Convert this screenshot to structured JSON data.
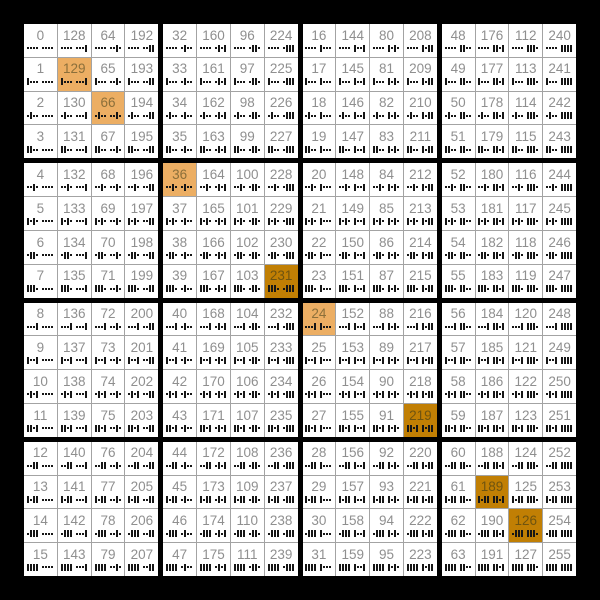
{
  "page": {
    "background": "#000000"
  },
  "chart_data": {
    "type": "table",
    "title": "",
    "description": "16x16 grid of byte values 0-255; cell(row r, col c) = r + bit-reverse(c). Each cell shows the decimal value and its 8-bit binary pattern drawn LSB-first (dot = 0, bar = 1, small gap between nibbles). Binary-palindrome values with two set bits are highlighted light orange, with six set bits dark orange.",
    "rows": 16,
    "cols": 16,
    "values": [
      [
        0,
        128,
        64,
        192,
        32,
        160,
        96,
        224,
        16,
        144,
        80,
        208,
        48,
        176,
        112,
        240
      ],
      [
        1,
        129,
        65,
        193,
        33,
        161,
        97,
        225,
        17,
        145,
        81,
        209,
        49,
        177,
        113,
        241
      ],
      [
        2,
        130,
        66,
        194,
        34,
        162,
        98,
        226,
        18,
        146,
        82,
        210,
        50,
        178,
        114,
        242
      ],
      [
        3,
        131,
        67,
        195,
        35,
        163,
        99,
        227,
        19,
        147,
        83,
        211,
        51,
        179,
        115,
        243
      ],
      [
        4,
        132,
        68,
        196,
        36,
        164,
        100,
        228,
        20,
        148,
        84,
        212,
        52,
        180,
        116,
        244
      ],
      [
        5,
        133,
        69,
        197,
        37,
        165,
        101,
        229,
        21,
        149,
        85,
        213,
        53,
        181,
        117,
        245
      ],
      [
        6,
        134,
        70,
        198,
        38,
        166,
        102,
        230,
        22,
        150,
        86,
        214,
        54,
        182,
        118,
        246
      ],
      [
        7,
        135,
        71,
        199,
        39,
        167,
        103,
        231,
        23,
        151,
        87,
        215,
        55,
        183,
        119,
        247
      ],
      [
        8,
        136,
        72,
        200,
        40,
        168,
        104,
        232,
        24,
        152,
        88,
        216,
        56,
        184,
        120,
        248
      ],
      [
        9,
        137,
        73,
        201,
        41,
        169,
        105,
        233,
        25,
        153,
        89,
        217,
        57,
        185,
        121,
        249
      ],
      [
        10,
        138,
        74,
        202,
        42,
        170,
        106,
        234,
        26,
        154,
        90,
        218,
        58,
        186,
        122,
        250
      ],
      [
        11,
        139,
        75,
        203,
        43,
        171,
        107,
        235,
        27,
        155,
        91,
        219,
        59,
        187,
        123,
        251
      ],
      [
        12,
        140,
        76,
        204,
        44,
        172,
        108,
        236,
        28,
        156,
        92,
        220,
        60,
        188,
        124,
        252
      ],
      [
        13,
        141,
        77,
        205,
        45,
        173,
        109,
        237,
        29,
        157,
        93,
        221,
        61,
        189,
        125,
        253
      ],
      [
        14,
        142,
        78,
        206,
        46,
        174,
        110,
        238,
        30,
        158,
        94,
        222,
        62,
        190,
        126,
        254
      ],
      [
        15,
        143,
        79,
        207,
        47,
        175,
        111,
        239,
        31,
        159,
        95,
        223,
        63,
        191,
        127,
        255
      ]
    ],
    "binary_glyph_legend": {
      "zero_glyph": "small-dot",
      "one_glyph": "vertical-bar",
      "bit_order": "LSB-first",
      "nibble_gap_after_bits": 4
    }
  },
  "grid_style": {
    "cell_bg": "#ffffff",
    "thin_line_color": "#a3a3a3",
    "block_line_color": "#000000",
    "number_color": "#8f8f8f",
    "bit_glyph_color": "#161616"
  },
  "highlights": {
    "light": {
      "bg": "#ecae63",
      "number_color": "#8b6f3a",
      "values": [
        129,
        66,
        36,
        24
      ]
    },
    "dark": {
      "bg": "#c17f04",
      "number_color": "#6f5410",
      "values": [
        231,
        219,
        189,
        126
      ]
    }
  }
}
